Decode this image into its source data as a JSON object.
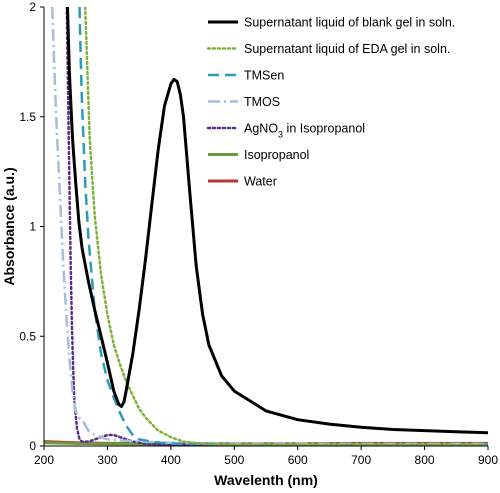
{
  "chart_data": {
    "type": "line",
    "title": "",
    "xlabel": "Wavelenth (nm)",
    "ylabel": "Absorbance (a.u.)",
    "xlim": [
      200,
      900
    ],
    "ylim": [
      0,
      2
    ],
    "x_ticks": [
      200,
      300,
      400,
      500,
      600,
      700,
      800,
      900
    ],
    "y_ticks": [
      0,
      0.5,
      1,
      1.5,
      2
    ],
    "x_tick_labels": [
      "200",
      "300",
      "400",
      "500",
      "600",
      "700",
      "800",
      "900"
    ],
    "y_tick_labels": [
      "0",
      "0.5",
      "1",
      "1.5",
      "2"
    ],
    "grid": false,
    "legend_position": "top-right",
    "series": [
      {
        "name": "Supernatant liquid of blank gel in soln.",
        "color": "#000000",
        "style": "solid",
        "x": [
          237,
          240,
          245,
          250,
          255,
          260,
          270,
          280,
          290,
          300,
          310,
          318,
          322,
          326,
          330,
          340,
          350,
          360,
          370,
          380,
          390,
          400,
          405,
          410,
          415,
          420,
          430,
          440,
          450,
          460,
          480,
          500,
          550,
          600,
          650,
          700,
          750,
          800,
          850,
          900
        ],
        "y": [
          2.0,
          1.7,
          1.4,
          1.2,
          1.02,
          0.9,
          0.75,
          0.62,
          0.5,
          0.38,
          0.25,
          0.19,
          0.18,
          0.2,
          0.26,
          0.42,
          0.62,
          0.85,
          1.1,
          1.35,
          1.55,
          1.65,
          1.67,
          1.66,
          1.6,
          1.5,
          1.15,
          0.82,
          0.6,
          0.46,
          0.32,
          0.25,
          0.16,
          0.12,
          0.1,
          0.085,
          0.075,
          0.07,
          0.065,
          0.06
        ]
      },
      {
        "name": "Supernatant liquid of EDA gel in soln.",
        "color": "#7fb23b",
        "style": "dotted",
        "x": [
          265,
          268,
          272,
          280,
          290,
          300,
          310,
          320,
          330,
          340,
          350,
          360,
          370,
          380,
          400,
          420,
          450,
          500,
          600,
          700,
          800,
          900
        ],
        "y": [
          2.0,
          1.75,
          1.4,
          1.05,
          0.78,
          0.6,
          0.46,
          0.37,
          0.29,
          0.23,
          0.17,
          0.13,
          0.1,
          0.07,
          0.04,
          0.02,
          0.01,
          0.005,
          0.005,
          0.005,
          0.005,
          0.005
        ]
      },
      {
        "name": "TMSen",
        "color": "#2d9bb8",
        "style": "dashed",
        "x": [
          256,
          258,
          260,
          265,
          270,
          280,
          290,
          300,
          310,
          320,
          330,
          340,
          350,
          370,
          400,
          450,
          500,
          600,
          700,
          800,
          900
        ],
        "y": [
          2.0,
          1.75,
          1.55,
          1.2,
          0.95,
          0.62,
          0.42,
          0.3,
          0.22,
          0.15,
          0.09,
          0.05,
          0.03,
          0.02,
          0.01,
          0.01,
          0.005,
          0.005,
          0.005,
          0.005,
          0.005
        ]
      },
      {
        "name": "TMOS",
        "color": "#a6bedc",
        "style": "dashdot",
        "x": [
          213,
          216,
          220,
          225,
          230,
          235,
          240,
          245,
          250,
          255,
          260,
          270,
          280,
          300,
          350,
          400,
          500,
          600,
          700,
          800,
          900
        ],
        "y": [
          2.0,
          1.75,
          1.45,
          1.15,
          0.85,
          0.6,
          0.4,
          0.25,
          0.16,
          0.13,
          0.12,
          0.07,
          0.05,
          0.03,
          0.02,
          0.015,
          0.01,
          0.01,
          0.01,
          0.01,
          0.01
        ]
      },
      {
        "name": "AgNO3 in Isopropanol",
        "color": "#5a2d8c",
        "style": "dotted",
        "x": [
          236,
          238,
          240,
          242,
          244,
          246,
          248,
          252,
          256,
          260,
          270,
          280,
          290,
          300,
          310,
          320,
          330,
          340,
          360,
          400,
          500,
          600,
          700,
          800,
          900
        ],
        "y": [
          2.0,
          1.6,
          1.2,
          0.85,
          0.55,
          0.35,
          0.2,
          0.08,
          0.03,
          0.02,
          0.02,
          0.03,
          0.04,
          0.05,
          0.05,
          0.04,
          0.03,
          0.02,
          0.01,
          0.005,
          0.005,
          0.005,
          0.005,
          0.005,
          0.005
        ]
      },
      {
        "name": "Isopropanol",
        "color": "#6e9a3c",
        "style": "solid",
        "x": [
          200,
          250,
          300,
          400,
          500,
          600,
          700,
          800,
          900
        ],
        "y": [
          0.015,
          0.012,
          0.01,
          0.008,
          0.008,
          0.008,
          0.008,
          0.008,
          0.008
        ]
      },
      {
        "name": "Water",
        "color": "#b03a2e",
        "style": "solid",
        "x": [
          200,
          250,
          300,
          400,
          500,
          600,
          700,
          800,
          900
        ],
        "y": [
          0.02,
          0.015,
          0.012,
          0.01,
          0.01,
          0.01,
          0.012,
          0.012,
          0.012
        ]
      }
    ]
  }
}
